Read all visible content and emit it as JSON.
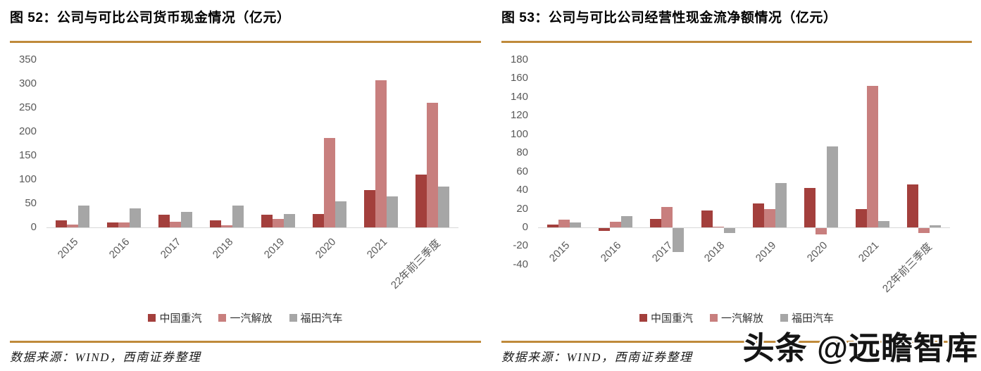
{
  "figures": [
    {
      "source": "数据来源：WIND，西南证券整理"
    },
    {
      "source": "数据来源：WIND，西南证券整理"
    }
  ],
  "watermark": {
    "text": "头条 @远瞻智库"
  },
  "colors": {
    "sinotruk_red": "#a33f3c",
    "faw_pink": "#c87f7e",
    "foton_gray": "#a6a6a6",
    "divider_gold": "#bf8a3b",
    "axis_text": "#595959",
    "axis_line": "#d9d9d9"
  },
  "chart_data": [
    {
      "type": "bar",
      "title": "图 52：公司与可比公司货币现金情况（亿元）",
      "categories": [
        "2015",
        "2016",
        "2017",
        "2018",
        "2019",
        "2020",
        "2021",
        "22年前三季度"
      ],
      "series": [
        {
          "name": "中国重汽",
          "color": "#a33f3c",
          "values": [
            15,
            10,
            26,
            14,
            26,
            28,
            78,
            111
          ]
        },
        {
          "name": "一汽解放",
          "color": "#c87f7e",
          "values": [
            6,
            10,
            12,
            4,
            17,
            187,
            307,
            260
          ]
        },
        {
          "name": "福田汽车",
          "color": "#a6a6a6",
          "values": [
            45,
            40,
            32,
            46,
            28,
            54,
            65,
            85
          ]
        }
      ],
      "xlabel": "",
      "ylabel": "",
      "ylim": [
        0,
        350
      ],
      "ytick_step": 50,
      "grid": false,
      "legend_position": "bottom"
    },
    {
      "type": "bar",
      "title": "图 53：公司与可比公司经营性现金流净额情况（亿元）",
      "categories": [
        "2015",
        "2016",
        "2017",
        "2018",
        "2019",
        "2020",
        "2021",
        "22年前三季度"
      ],
      "series": [
        {
          "name": "中国重汽",
          "color": "#a33f3c",
          "values": [
            3,
            -3,
            9,
            18,
            26,
            42,
            20,
            46
          ]
        },
        {
          "name": "一汽解放",
          "color": "#c87f7e",
          "values": [
            8,
            6,
            22,
            1,
            20,
            -7,
            152,
            -5
          ]
        },
        {
          "name": "福田汽车",
          "color": "#a6a6a6",
          "values": [
            5,
            12,
            -26,
            -5,
            48,
            87,
            7,
            2
          ]
        }
      ],
      "xlabel": "",
      "ylabel": "",
      "ylim": [
        -40,
        180
      ],
      "ytick_step": 20,
      "grid": false,
      "legend_position": "bottom"
    }
  ]
}
